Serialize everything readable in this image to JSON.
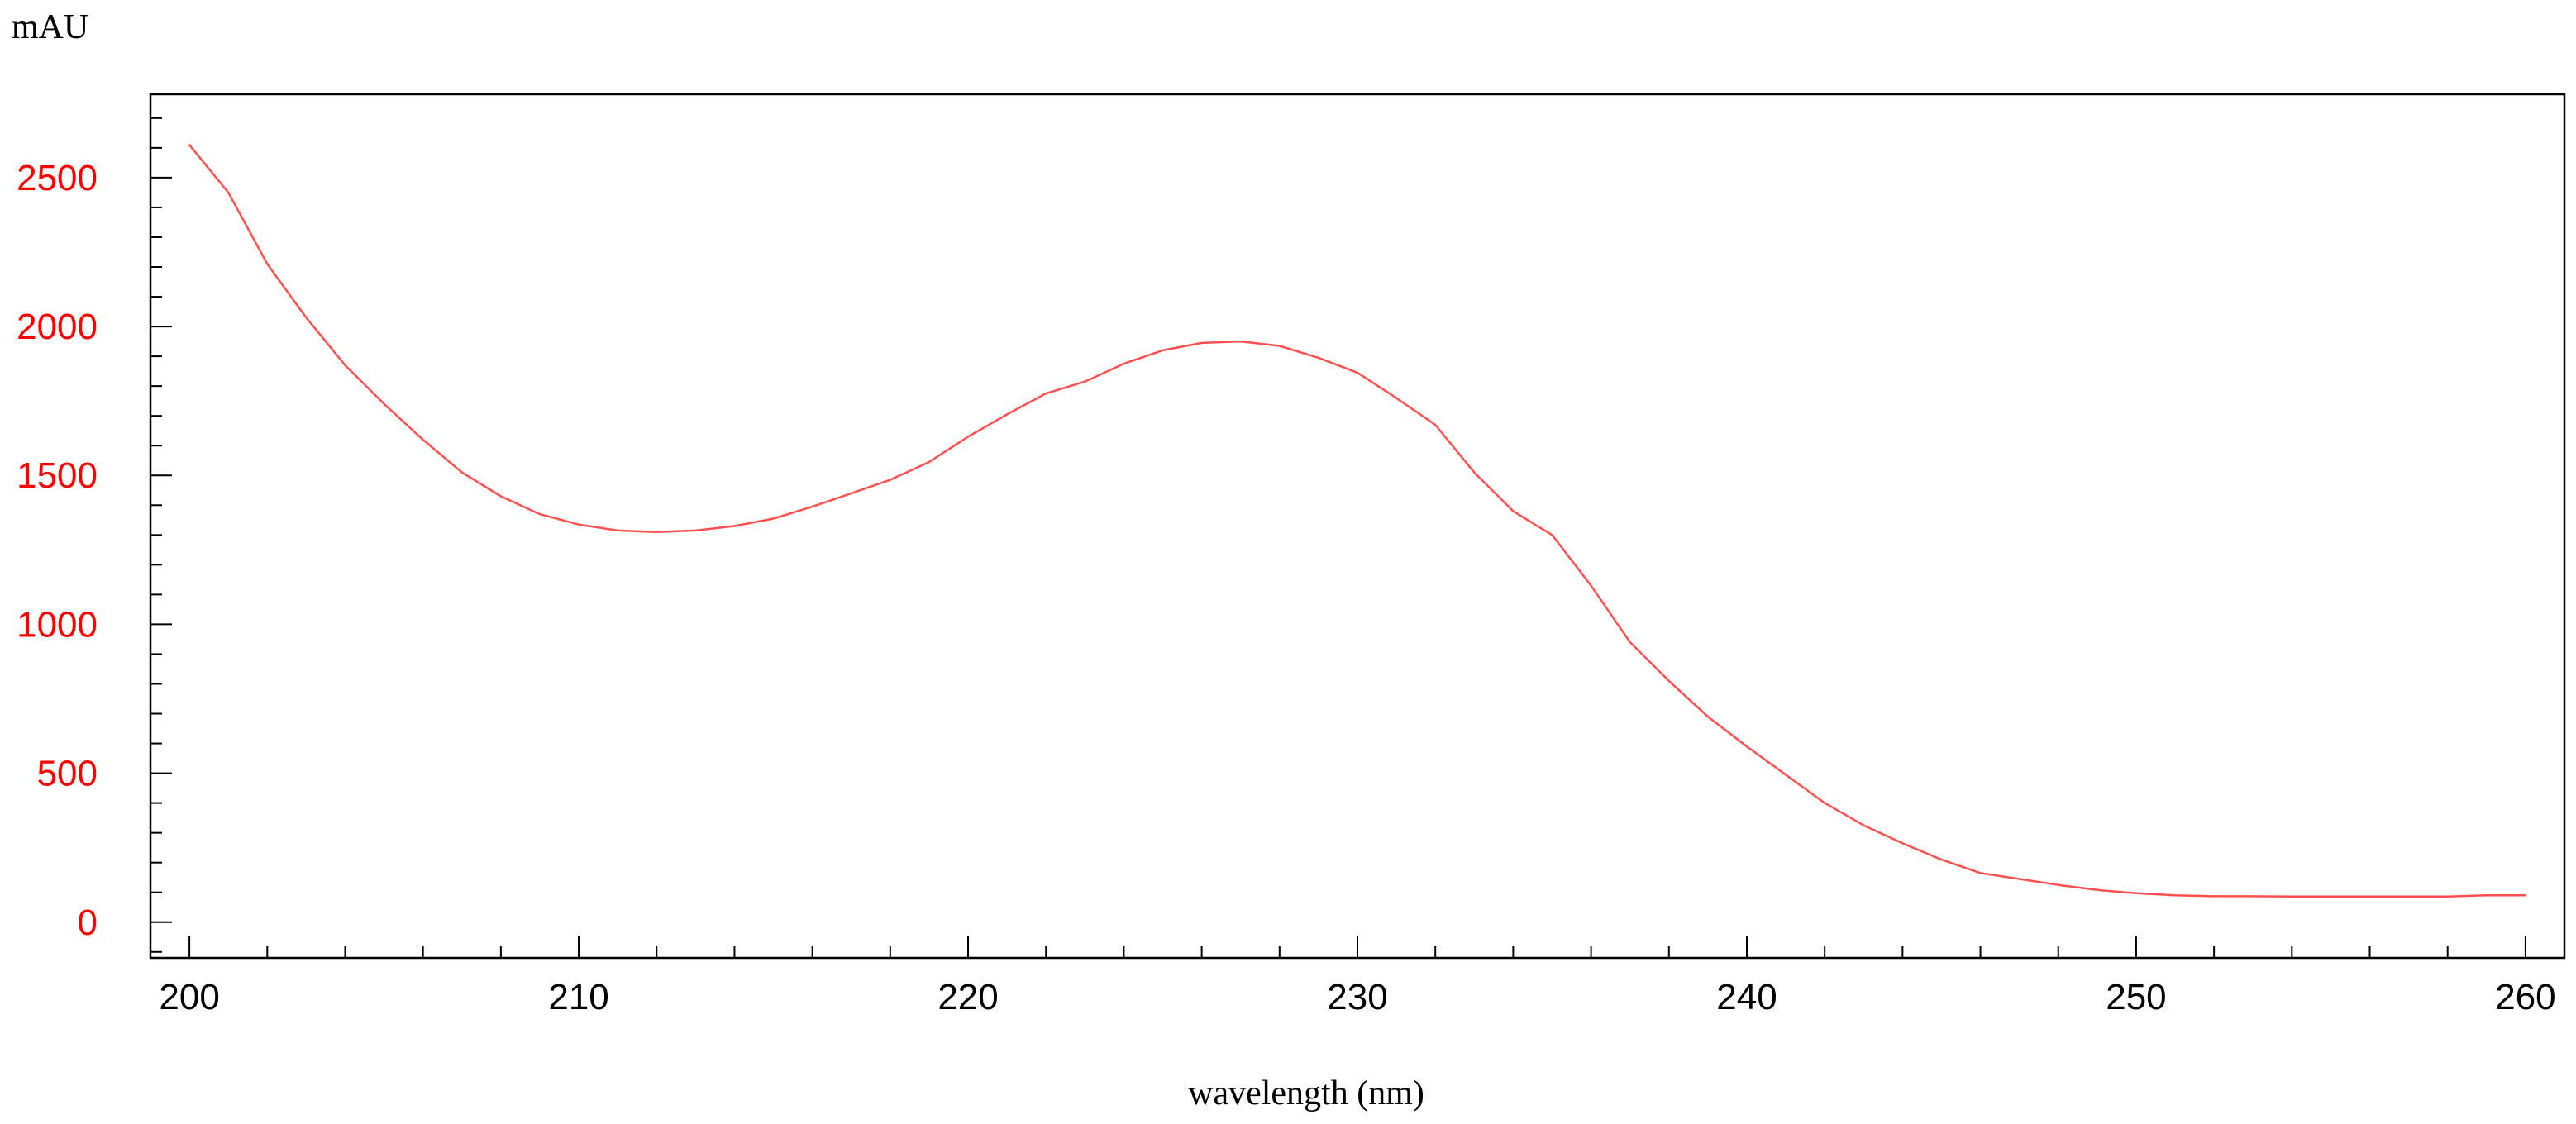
{
  "chart_data": {
    "type": "line",
    "title": "",
    "xlabel": "wavelength (nm)",
    "ylabel": "mAU",
    "xlim": [
      199,
      261
    ],
    "ylim": [
      -120,
      2780
    ],
    "x_ticks": [
      200,
      210,
      220,
      230,
      240,
      250,
      260
    ],
    "y_ticks": [
      0,
      500,
      1000,
      1500,
      2000,
      2500
    ],
    "x_minor_step": 2,
    "y_minor_step": 100,
    "grid": false,
    "legend": "none",
    "colors": {
      "line": "#ff5050",
      "y_tick_labels": "#ff0000",
      "x_tick_labels": "#000000",
      "axes": "#000000"
    },
    "series": [
      {
        "x": [
          200,
          201,
          202,
          203,
          204,
          205,
          206,
          207,
          208,
          209,
          210,
          211,
          212,
          213,
          214,
          215,
          216,
          217,
          218,
          219,
          220,
          221,
          222,
          223,
          224,
          225,
          226,
          227,
          228,
          229,
          230,
          231,
          232,
          233,
          234,
          235,
          236,
          237,
          238,
          239,
          240,
          241,
          242,
          243,
          244,
          245,
          246,
          247,
          248,
          249,
          250,
          251,
          252,
          253,
          254,
          255,
          256,
          257,
          258,
          259,
          260
        ],
        "y": [
          2610,
          2450,
          2210,
          2030,
          1870,
          1740,
          1620,
          1510,
          1430,
          1370,
          1335,
          1315,
          1310,
          1315,
          1330,
          1355,
          1395,
          1440,
          1485,
          1545,
          1630,
          1705,
          1775,
          1815,
          1875,
          1920,
          1945,
          1950,
          1935,
          1895,
          1845,
          1760,
          1670,
          1510,
          1380,
          1300,
          1130,
          940,
          810,
          690,
          590,
          495,
          400,
          325,
          265,
          210,
          165,
          145,
          125,
          108,
          97,
          90,
          87,
          87,
          86,
          86,
          86,
          86,
          86,
          90,
          90
        ]
      }
    ]
  }
}
